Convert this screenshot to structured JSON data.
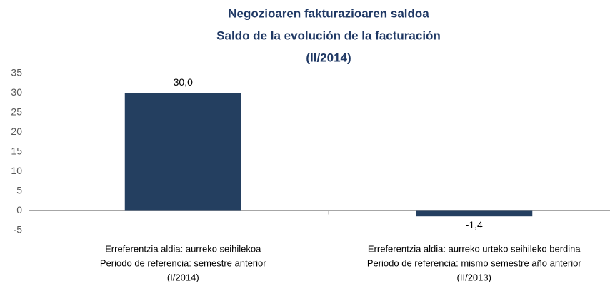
{
  "chart_data": {
    "type": "bar",
    "title": [
      "Negozioaren fakturazioaren saldoa",
      "Saldo de la evolución de la facturación",
      "(II/2014)"
    ],
    "categories": [
      [
        "Erreferentzia aldia: aurreko seihilekoa",
        "Periodo de referencia: semestre anterior",
        "(I/2014)"
      ],
      [
        "Erreferentzia aldia: aurreko urteko seihileko berdina",
        "Periodo de referencia: mismo semestre año anterior",
        "(II/2013)"
      ]
    ],
    "values": [
      30.0,
      -1.4
    ],
    "value_labels": [
      "30,0",
      "-1,4"
    ],
    "color": "#243f60",
    "ylim": [
      -5,
      35
    ],
    "yticks": [
      -5,
      0,
      5,
      10,
      15,
      20,
      25,
      30,
      35
    ],
    "grid": false
  }
}
